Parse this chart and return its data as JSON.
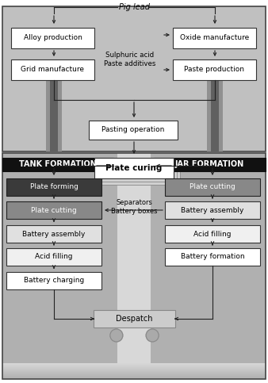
{
  "pig_lead_label": "Pig lead",
  "sulphuric_label": "Sulphuric acid\nPaste additives",
  "pasting_label": "Pasting operation",
  "plate_curing_label": "Plate curing",
  "tank_formation_label": "TANK FORMATION",
  "jar_formation_label": "JAR FORMATION",
  "separators_label": "Separators\nBattery boxes",
  "despatch_label": "Despatch",
  "top_bg": "#c0c0c0",
  "bottom_left_bg": "#b0b0b0",
  "bottom_right_bg": "#b0b0b0",
  "bottom_center_bg": "#e8e8e8",
  "bottom_fade_bg": "#d0d0d0",
  "header_bg": "#111111",
  "pipe_outer": "#909090",
  "pipe_inner": "#606060",
  "box_white": "#ffffff",
  "box_light": "#e0e0e0",
  "box_medium": "#888888",
  "box_dark": "#555555",
  "box_darkest": "#3a3a3a",
  "despatch_bg": "#cccccc",
  "wheel_color": "#aaaaaa",
  "arrow_color": "#222222",
  "border_color": "#333333",
  "fig_bg": "#ffffff"
}
